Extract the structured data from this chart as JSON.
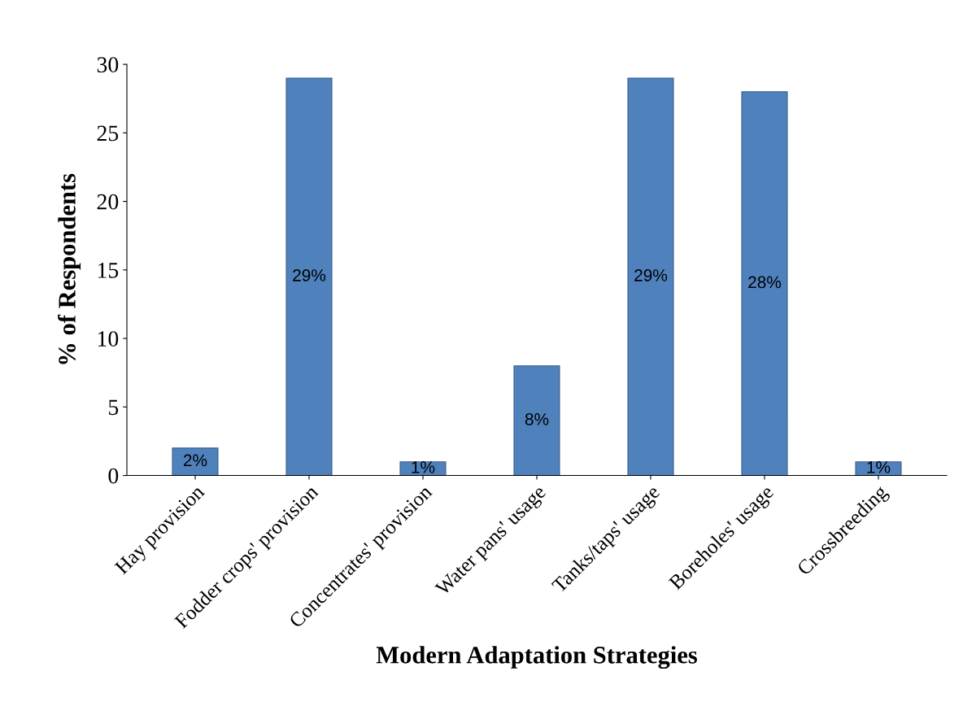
{
  "chart_data": {
    "type": "bar",
    "xlabel": "Modern Adaptation Strategies",
    "ylabel": "% of Respondents",
    "categories": [
      "Hay provision",
      "Fodder crops' provision",
      "Concentrates' provision",
      "Water pans' usage",
      "Tanks/taps' usage",
      "Boreholes' usage",
      "Crossbreeding"
    ],
    "values": [
      2,
      29,
      1,
      8,
      29,
      28,
      1
    ],
    "value_labels": [
      "2%",
      "29%",
      "1%",
      "8%",
      "29%",
      "28%",
      "1%"
    ],
    "color": "#4f81bd",
    "ylim": [
      0,
      30
    ],
    "yticks": [
      0,
      5,
      10,
      15,
      20,
      25,
      30
    ],
    "grid": false,
    "legend": false
  }
}
